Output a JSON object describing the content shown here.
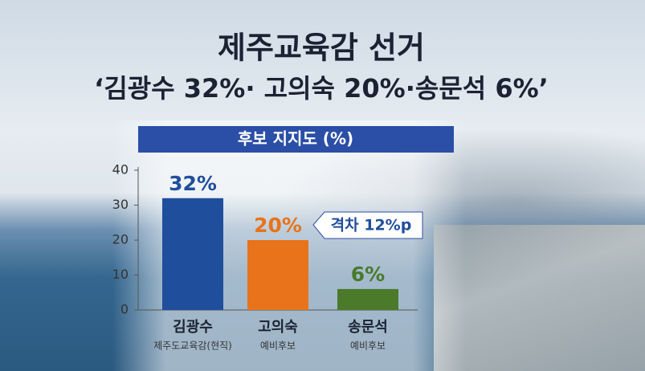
{
  "chart_data": {
    "type": "bar",
    "title": "제주교육감 선거",
    "subtitle": "‘김광수 32%· 고의숙 20%·송문석 6%’",
    "chart_title": "후보 지지도 (%)",
    "categories": [
      "김광수",
      "고의숙",
      "송문석"
    ],
    "sublabels": [
      "제주도교육감(현직)",
      "예비후보",
      "예비후보"
    ],
    "values": [
      32,
      20,
      6
    ],
    "value_labels": [
      "32%",
      "20%",
      "6%"
    ],
    "colors": [
      "#1f4e9c",
      "#e8731a",
      "#4a7a2a"
    ],
    "annotation": "격차 12%p",
    "ylim": [
      0,
      40
    ],
    "yticks": [
      0,
      10,
      20,
      30,
      40
    ]
  }
}
